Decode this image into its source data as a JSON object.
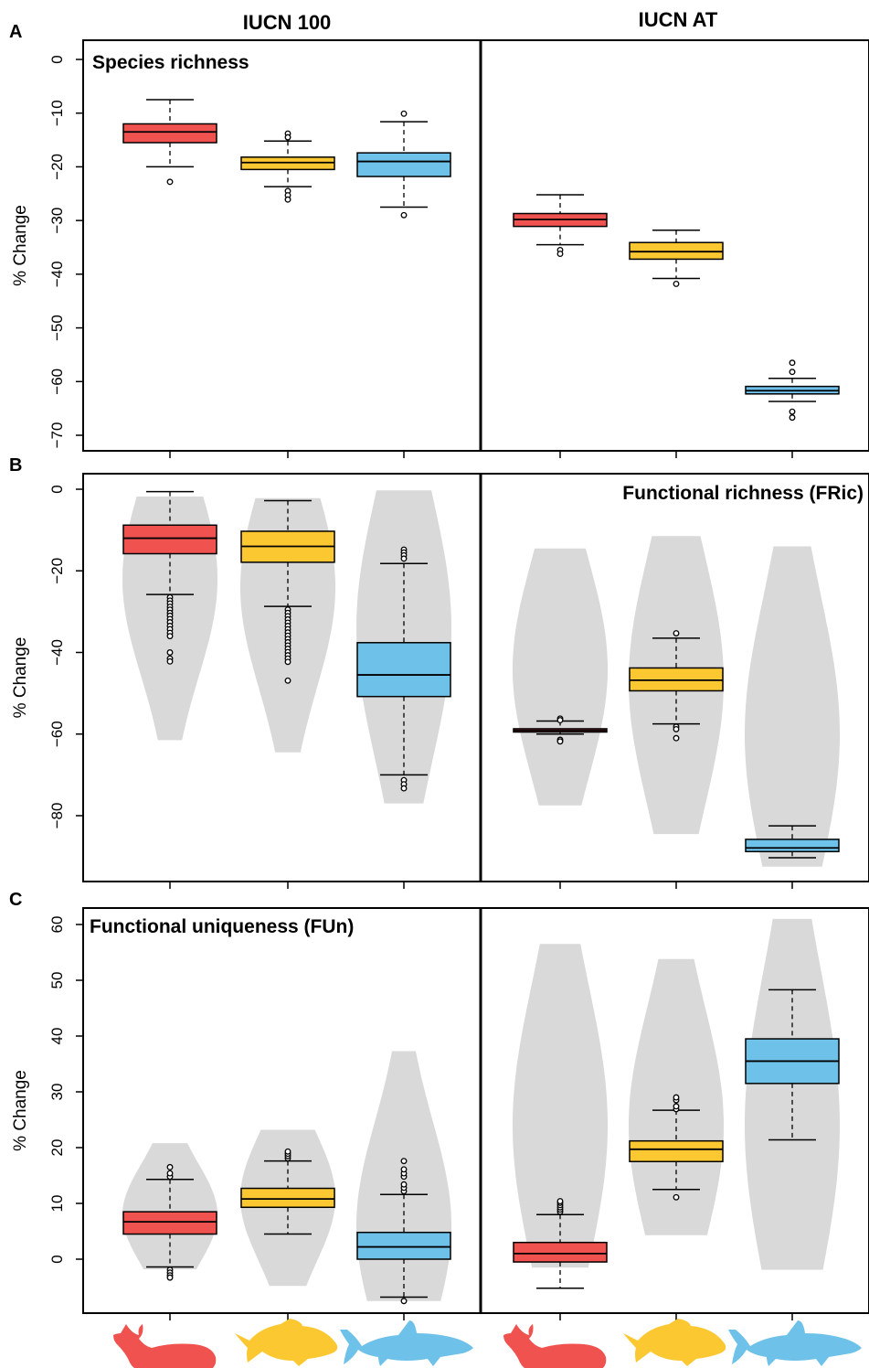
{
  "columns": [
    "IUCN 100",
    "IUCN AT"
  ],
  "colors": {
    "mammal": "#f0534f",
    "fish": "#fcc832",
    "shark": "#6ec1e8",
    "violin": "#d9d9d9"
  },
  "icons": [
    "whale-silhouette-icon",
    "fish-silhouette-icon",
    "shark-silhouette-icon"
  ],
  "chart_data": [
    {
      "type": "box",
      "panel": "A",
      "label": "Species richness",
      "ylabel": "% Change",
      "ylim": [
        -70,
        0
      ],
      "yticks": [
        0,
        -10,
        -20,
        -30,
        -40,
        -50,
        -60,
        -70
      ],
      "groups": [
        {
          "column": "IUCN 100",
          "boxes": [
            {
              "group": "mammal",
              "whisker_low": -20,
              "q1": -15.5,
              "median": -13.5,
              "q3": -12,
              "whisker_high": -7.5,
              "outliers": [
                -22.8
              ]
            },
            {
              "group": "fish",
              "whisker_low": -23.7,
              "q1": -20.5,
              "median": -19.2,
              "q3": -18.2,
              "whisker_high": -15.2,
              "outliers": [
                -13.8,
                -14.5,
                -24.5,
                -25.3,
                -26.1
              ]
            },
            {
              "group": "shark",
              "whisker_low": -27.5,
              "q1": -21.8,
              "median": -19,
              "q3": -17.4,
              "whisker_high": -11.6,
              "outliers": [
                -10.1,
                -29
              ]
            }
          ]
        },
        {
          "column": "IUCN AT",
          "boxes": [
            {
              "group": "mammal",
              "whisker_low": -34.5,
              "q1": -31.1,
              "median": -29.8,
              "q3": -28.7,
              "whisker_high": -25.2,
              "outliers": [
                -35.5,
                -36.2
              ]
            },
            {
              "group": "fish",
              "whisker_low": -40.8,
              "q1": -37.2,
              "median": -35.8,
              "q3": -34.1,
              "whisker_high": -31.8,
              "outliers": [
                -41.8
              ]
            },
            {
              "group": "shark",
              "whisker_low": -63.7,
              "q1": -62.3,
              "median": -61.7,
              "q3": -60.9,
              "whisker_high": -59.4,
              "outliers": [
                -56.5,
                -58.2,
                -65.6,
                -66.7
              ]
            }
          ]
        }
      ]
    },
    {
      "type": "violin-box",
      "panel": "B",
      "label": "Functional richness (FRic)",
      "ylabel": "% Change",
      "ylim": [
        -93,
        0
      ],
      "yticks": [
        0,
        -20,
        -40,
        -60,
        -80
      ],
      "groups": [
        {
          "column": "IUCN 100",
          "boxes": [
            {
              "group": "mammal",
              "violin": [
                -1.8,
                -61.5,
                -22,
                0.4
              ],
              "whisker_low": -25.8,
              "q1": -15.8,
              "median": -12,
              "q3": -8.8,
              "whisker_high": -0.6,
              "outliers": [
                -26.5,
                -27.3,
                -28,
                -28.8,
                -29.5,
                -30.3,
                -31,
                -31.8,
                -32.6,
                -33.5,
                -34.3,
                -35.2,
                -36,
                -40,
                -41.5,
                -42.2
              ]
            },
            {
              "group": "fish",
              "violin": [
                -2.2,
                -64.5,
                -24,
                0.4
              ],
              "whisker_low": -28.7,
              "q1": -17.9,
              "median": -14,
              "q3": -10.3,
              "whisker_high": -2.8,
              "outliers": [
                -29.5,
                -30.3,
                -31.1,
                -31.9,
                -32.7,
                -33.5,
                -34.3,
                -35.1,
                -35.9,
                -36.7,
                -37.5,
                -38.3,
                -39.1,
                -39.9,
                -40.7,
                -41.5,
                -42.3,
                -46.9
              ]
            },
            {
              "group": "shark",
              "violin": [
                -0.3,
                -77,
                -34,
                0.42
              ],
              "whisker_low": -70,
              "q1": -50.8,
              "median": -45.5,
              "q3": -37.6,
              "whisker_high": -18.2,
              "outliers": [
                -14.8,
                -15.5,
                -16.2,
                -17,
                -71.3,
                -72.3,
                -73.3
              ]
            }
          ]
        },
        {
          "column": "IUCN AT",
          "boxes": [
            {
              "group": "mammal",
              "violin": [
                -14.5,
                -77.5,
                -44,
                0.42
              ],
              "whisker_low": -60,
              "q1": -59.5,
              "median": -59.1,
              "q3": -58.7,
              "whisker_high": -56.8,
              "outliers": [
                -56.2,
                -56.6,
                -61.4,
                -61.8
              ]
            },
            {
              "group": "fish",
              "violin": [
                -11.5,
                -84.5,
                -47,
                0.42
              ],
              "whisker_low": -57.5,
              "q1": -49.4,
              "median": -46.8,
              "q3": -43.8,
              "whisker_high": -36.5,
              "outliers": [
                -35.3,
                -58.2,
                -58.8,
                -61
              ]
            },
            {
              "group": "shark",
              "violin": [
                -14,
                -92.5,
                -60,
                0.43
              ],
              "whisker_low": -90.3,
              "q1": -88.8,
              "median": -87.9,
              "q3": -85.8,
              "whisker_high": -82.5,
              "outliers": []
            }
          ]
        }
      ]
    },
    {
      "type": "violin-box",
      "panel": "C",
      "label": "Functional uniqueness (FUn)",
      "ylabel": "% Change",
      "ylim": [
        -9,
        63
      ],
      "yticks": [
        0,
        10,
        20,
        30,
        40,
        50,
        60
      ],
      "groups": [
        {
          "column": "IUCN 100",
          "boxes": [
            {
              "group": "mammal",
              "violin": [
                20.8,
                -1.8,
                8,
                0.4
              ],
              "whisker_low": -1.4,
              "q1": 4.5,
              "median": 6.7,
              "q3": 8.5,
              "whisker_high": 14.3,
              "outliers": [
                14.8,
                15.4,
                16.5,
                -1.9,
                -2.4,
                -2.9,
                -3.3
              ]
            },
            {
              "group": "fish",
              "violin": [
                23.2,
                -4.8,
                11,
                0.41
              ],
              "whisker_low": 4.5,
              "q1": 9.3,
              "median": 10.8,
              "q3": 12.7,
              "whisker_high": 17.6,
              "outliers": [
                18.1,
                18.5,
                18.9,
                19.3
              ]
            },
            {
              "group": "shark",
              "violin": [
                37.3,
                -7.5,
                6,
                0.42
              ],
              "whisker_low": -6.8,
              "q1": 0,
              "median": 2.2,
              "q3": 4.8,
              "whisker_high": 11.6,
              "outliers": [
                12.2,
                12.8,
                13.4,
                14.8,
                15.4,
                16.1,
                17.6,
                -7.5
              ]
            }
          ]
        },
        {
          "column": "IUCN AT",
          "boxes": [
            {
              "group": "mammal",
              "violin": [
                56.5,
                -1.5,
                24,
                0.43
              ],
              "whisker_low": -5.2,
              "q1": -0.5,
              "median": 1,
              "q3": 3,
              "whisker_high": 8,
              "outliers": [
                8.5,
                8.9,
                9.3,
                9.7,
                10.1,
                10.4
              ]
            },
            {
              "group": "fish",
              "violin": [
                53.8,
                4.3,
                24,
                0.43
              ],
              "whisker_low": 12.5,
              "q1": 17.5,
              "median": 19.7,
              "q3": 21.2,
              "whisker_high": 26.7,
              "outliers": [
                26.9,
                27.4,
                28.5,
                29,
                11.1
              ]
            },
            {
              "group": "shark",
              "violin": [
                61,
                -1.9,
                24,
                0.44
              ],
              "whisker_low": 21.4,
              "q1": 31.5,
              "median": 35.5,
              "q3": 39.5,
              "whisker_high": 48.3,
              "outliers": []
            }
          ]
        }
      ]
    }
  ]
}
